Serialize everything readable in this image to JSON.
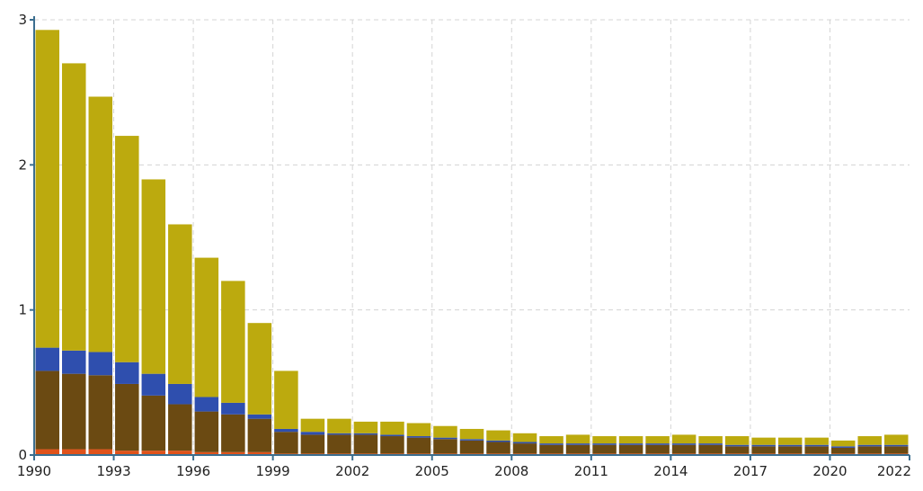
{
  "chart_data": {
    "type": "bar",
    "stacked": true,
    "title": "",
    "xlabel": "",
    "ylabel": "",
    "ylim": [
      0,
      3
    ],
    "yticks": [
      0,
      1,
      2,
      3
    ],
    "grid": true,
    "legend": "none",
    "x_tick_labels": [
      "1990",
      "1993",
      "1996",
      "1999",
      "2002",
      "2005",
      "2008",
      "2011",
      "2014",
      "2017",
      "2020",
      "2022"
    ],
    "categories": [
      "1990",
      "1991",
      "1992",
      "1993",
      "1994",
      "1995",
      "1996",
      "1997",
      "1998",
      "1999",
      "2000",
      "2001",
      "2002",
      "2003",
      "2004",
      "2005",
      "2006",
      "2007",
      "2008",
      "2009",
      "2010",
      "2011",
      "2012",
      "2013",
      "2014",
      "2015",
      "2016",
      "2017",
      "2018",
      "2019",
      "2020",
      "2021",
      "2022"
    ],
    "series": [
      {
        "color": "#e0521a",
        "values": [
          0.04,
          0.04,
          0.04,
          0.03,
          0.03,
          0.03,
          0.02,
          0.02,
          0.02,
          0.01,
          0.01,
          0.01,
          0.01,
          0.01,
          0.01,
          0.01,
          0.01,
          0.01,
          0.01,
          0.01,
          0.01,
          0.01,
          0.01,
          0.01,
          0.01,
          0.01,
          0.01,
          0.01,
          0.01,
          0.01,
          0.01,
          0.01,
          0.01
        ]
      },
      {
        "color": "#6b4a12",
        "values": [
          0.54,
          0.52,
          0.51,
          0.46,
          0.38,
          0.32,
          0.28,
          0.26,
          0.23,
          0.15,
          0.13,
          0.13,
          0.13,
          0.12,
          0.11,
          0.1,
          0.09,
          0.08,
          0.07,
          0.06,
          0.06,
          0.06,
          0.06,
          0.06,
          0.06,
          0.06,
          0.05,
          0.05,
          0.05,
          0.05,
          0.04,
          0.05,
          0.05
        ]
      },
      {
        "color": "#2f4fae",
        "values": [
          0.16,
          0.16,
          0.16,
          0.15,
          0.15,
          0.14,
          0.1,
          0.08,
          0.03,
          0.02,
          0.02,
          0.01,
          0.01,
          0.01,
          0.01,
          0.01,
          0.01,
          0.01,
          0.01,
          0.01,
          0.01,
          0.01,
          0.01,
          0.01,
          0.01,
          0.01,
          0.01,
          0.01,
          0.01,
          0.01,
          0.01,
          0.01,
          0.01
        ]
      },
      {
        "color": "#bcaa0e",
        "values": [
          2.19,
          1.98,
          1.76,
          1.56,
          1.34,
          1.1,
          0.96,
          0.84,
          0.63,
          0.4,
          0.09,
          0.1,
          0.08,
          0.09,
          0.09,
          0.08,
          0.07,
          0.07,
          0.06,
          0.05,
          0.06,
          0.05,
          0.05,
          0.05,
          0.06,
          0.05,
          0.06,
          0.05,
          0.05,
          0.05,
          0.04,
          0.06,
          0.07
        ]
      }
    ]
  }
}
